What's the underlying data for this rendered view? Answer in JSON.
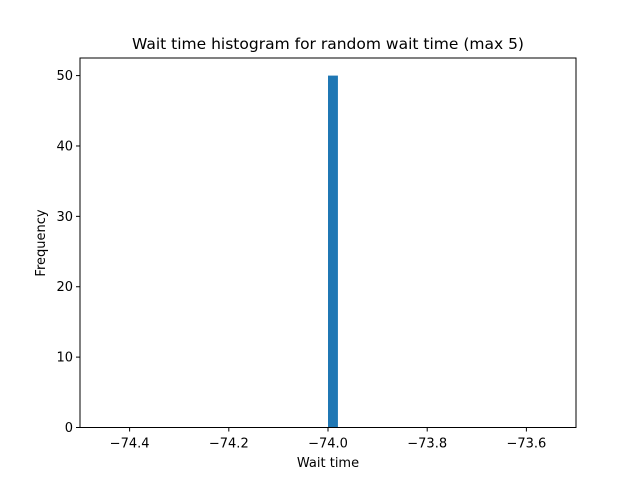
{
  "chart_data": {
    "type": "bar",
    "title": "Wait time histogram for random wait time (max 5)",
    "xlabel": "Wait time",
    "ylabel": "Frequency",
    "xlim": [
      -74.5,
      -73.5
    ],
    "ylim": [
      0,
      52.5
    ],
    "xticks": [
      -74.4,
      -74.2,
      -74.0,
      -73.8,
      -73.6
    ],
    "xtick_labels": [
      "−74.4",
      "−74.2",
      "−74.0",
      "−73.8",
      "−73.6"
    ],
    "yticks": [
      0,
      10,
      20,
      30,
      40,
      50
    ],
    "ytick_labels": [
      "0",
      "10",
      "20",
      "30",
      "40",
      "50"
    ],
    "bars": [
      {
        "x_start": -74.0,
        "x_end": -73.98,
        "value": 50
      }
    ],
    "bar_color": "#1f77b4",
    "grid": false,
    "legend": "none"
  }
}
